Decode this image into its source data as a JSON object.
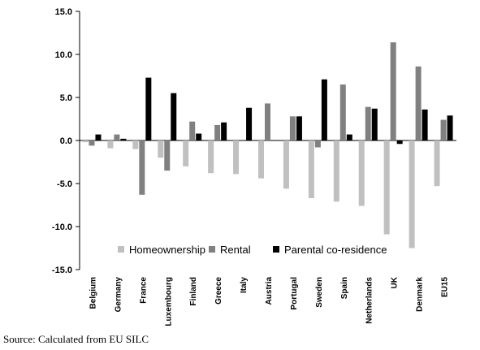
{
  "chart_data": {
    "type": "bar",
    "title": "",
    "xlabel": "",
    "ylabel": "",
    "ylim": [
      -15,
      15
    ],
    "yticks": [
      "15.0",
      "10.0",
      "5.0",
      "0.0",
      "-5.0",
      "-10.0",
      "-15.0"
    ],
    "categories": [
      "Belgium",
      "Germany",
      "France",
      "Luxembourg",
      "Finland",
      "Greece",
      "Italy",
      "Austria",
      "Portugal",
      "Sweden",
      "Spain",
      "Netherlands",
      "UK",
      "Denmark",
      "EU15"
    ],
    "series": [
      {
        "name": "Homeownership",
        "color": "#c0c0c0",
        "values": [
          -0.2,
          -0.9,
          -1.0,
          -2.0,
          -3.0,
          -3.8,
          -3.9,
          -4.4,
          -5.6,
          -6.7,
          -7.1,
          -7.6,
          -10.9,
          -12.5,
          -5.3
        ]
      },
      {
        "name": "Rental",
        "color": "#808080",
        "values": [
          -0.6,
          0.7,
          -6.3,
          -3.5,
          2.2,
          1.8,
          0.0,
          4.3,
          2.8,
          -0.8,
          6.5,
          3.9,
          11.4,
          8.6,
          2.4
        ]
      },
      {
        "name": "Parental co-residence",
        "color": "#000000",
        "values": [
          0.7,
          0.2,
          7.3,
          5.5,
          0.8,
          2.1,
          3.8,
          0.0,
          2.8,
          7.1,
          0.7,
          3.7,
          -0.4,
          3.6,
          2.9
        ]
      }
    ],
    "legend_position": "bottom-center",
    "grid": false
  },
  "source_note": "Source: Calculated from EU SILC"
}
